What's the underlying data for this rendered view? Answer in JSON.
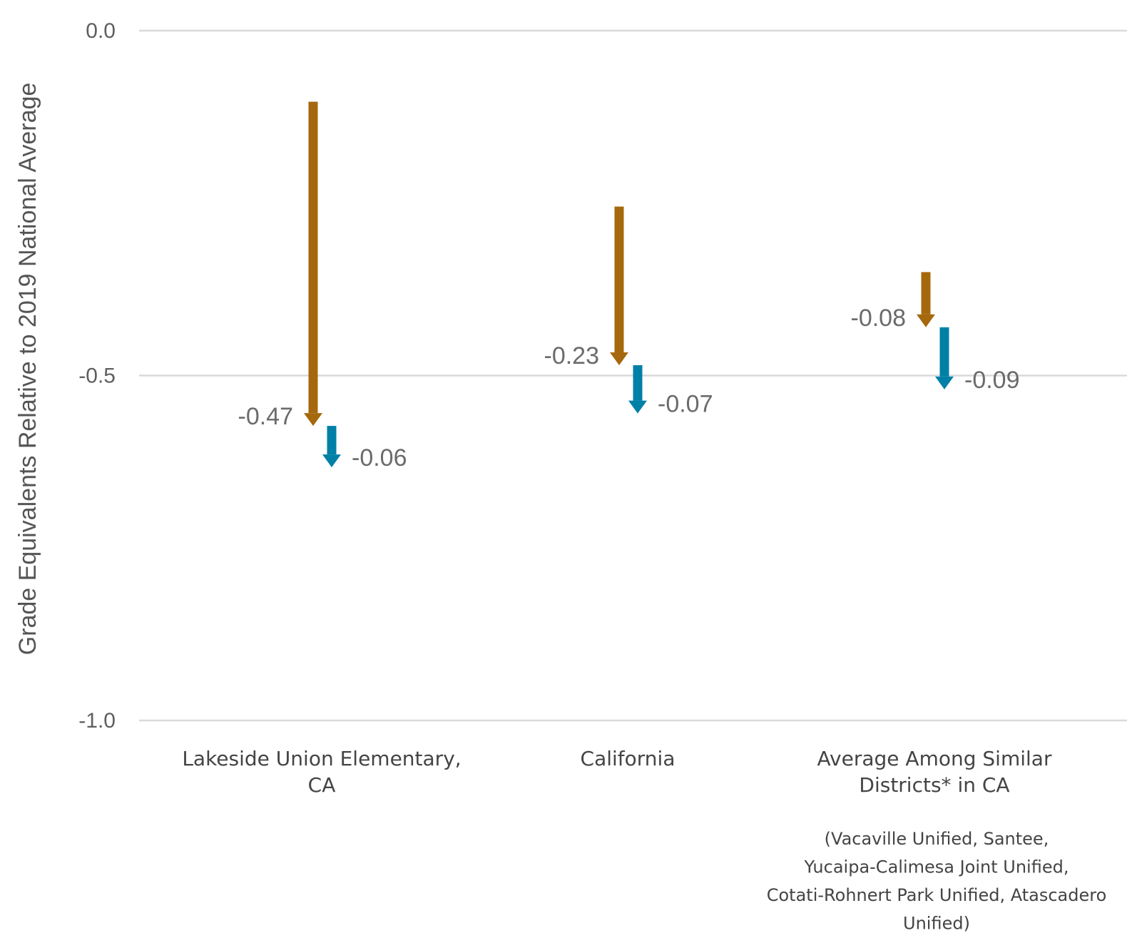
{
  "chart_data": {
    "type": "arrow",
    "ylabel": "Grade Equivalents Relative to 2019 National Average",
    "ylim": [
      -1.0,
      0.0
    ],
    "yticks": [
      {
        "value": 0.0,
        "label": "0.0"
      },
      {
        "value": -0.5,
        "label": "-0.5"
      },
      {
        "value": -1.0,
        "label": "-1.0"
      }
    ],
    "grid": true,
    "colors": {
      "first": "#a5680c",
      "second": "#0080a6"
    },
    "categories": [
      {
        "label_lines": [
          "Lakeside Union Elementary,",
          "CA"
        ],
        "note_lines": [],
        "arrows": [
          {
            "start": -0.103,
            "change": -0.47,
            "label": "-0.47",
            "color_key": "first"
          },
          {
            "start": -0.573,
            "change": -0.06,
            "label": "-0.06",
            "color_key": "second"
          }
        ]
      },
      {
        "label_lines": [
          "California"
        ],
        "note_lines": [],
        "arrows": [
          {
            "start": -0.255,
            "change": -0.23,
            "label": "-0.23",
            "color_key": "first"
          },
          {
            "start": -0.485,
            "change": -0.07,
            "label": "-0.07",
            "color_key": "second"
          }
        ]
      },
      {
        "label_lines": [
          "Average Among Similar",
          "Districts* in CA"
        ],
        "note_lines": [
          "(Vacaville Unified, Santee,",
          "Yucaipa-Calimesa Joint Unified,",
          "Cotati-Rohnert Park Unified, Atascadero",
          "Unified)"
        ],
        "arrows": [
          {
            "start": -0.35,
            "change": -0.08,
            "label": "-0.08",
            "color_key": "first"
          },
          {
            "start": -0.43,
            "change": -0.09,
            "label": "-0.09",
            "color_key": "second"
          }
        ]
      }
    ]
  }
}
